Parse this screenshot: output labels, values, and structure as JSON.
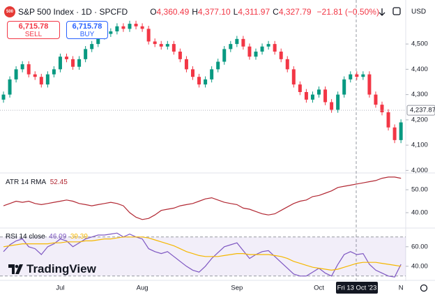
{
  "header": {
    "logo": "500",
    "symbol": "S&P 500 Index · 1D · SPCFD",
    "ohlc": [
      {
        "key": "O",
        "value": "4,360.49"
      },
      {
        "key": "H",
        "value": "4,377.10"
      },
      {
        "key": "L",
        "value": "4,311.97"
      },
      {
        "key": "C",
        "value": "4,327.79"
      }
    ],
    "change": "−21.81 (−0.50%)"
  },
  "trade": {
    "sell_price": "6,715.78",
    "sell": "SELL",
    "buy_price": "6,715.78",
    "buy": "BUY"
  },
  "currency": "USD",
  "brand": "TradingView",
  "crosshair_label": "Fri 13 Oct '23",
  "chart_data": [
    {
      "type": "candlestick",
      "categories": [
        null,
        null,
        null,
        null,
        null,
        null,
        null,
        null,
        null,
        "Jul",
        null,
        null,
        null,
        null,
        null,
        null,
        null,
        null,
        null,
        null,
        null,
        null,
        "Aug",
        null,
        null,
        null,
        null,
        null,
        null,
        null,
        null,
        null,
        null,
        null,
        null,
        null,
        null,
        "Sep",
        null,
        null,
        null,
        null,
        null,
        null,
        null,
        null,
        null,
        null,
        null,
        null,
        "Oct",
        null,
        null,
        null,
        null,
        null,
        null,
        null,
        null,
        null,
        null,
        null,
        null,
        "N"
      ],
      "open": [
        4280,
        4300,
        4360,
        4400,
        4420,
        4380,
        4370,
        4340,
        4380,
        4400,
        4450,
        4440,
        4410,
        4440,
        4480,
        4500,
        4530,
        4540,
        4550,
        4570,
        4560,
        4580,
        4570,
        4560,
        4510,
        4500,
        4490,
        4500,
        4470,
        4440,
        4400,
        4370,
        4340,
        4360,
        4400,
        4430,
        4480,
        4500,
        4520,
        4490,
        4450,
        4470,
        4490,
        4500,
        4470,
        4440,
        4400,
        4340,
        4310,
        4280,
        4300,
        4320,
        4270,
        4240,
        4300,
        4360,
        4380,
        4370,
        4380,
        4300,
        4260,
        4230,
        4170,
        4120
      ],
      "high": [
        4312,
        4372,
        4412,
        4432,
        4432,
        4392,
        4382,
        4392,
        4412,
        4462,
        4462,
        4452,
        4452,
        4492,
        4512,
        4542,
        4552,
        4562,
        4582,
        4582,
        4592,
        4592,
        4582,
        4572,
        4522,
        4512,
        4512,
        4512,
        4482,
        4452,
        4412,
        4382,
        4372,
        4412,
        4442,
        4492,
        4512,
        4532,
        4532,
        4502,
        4482,
        4502,
        4512,
        4512,
        4482,
        4452,
        4412,
        4352,
        4322,
        4312,
        4332,
        4332,
        4282,
        4312,
        4372,
        4392,
        4392,
        4392,
        4392,
        4312,
        4272,
        4242,
        4182,
        4202
      ],
      "low": [
        4268,
        4288,
        4348,
        4388,
        4368,
        4358,
        4328,
        4328,
        4368,
        4388,
        4428,
        4398,
        4398,
        4428,
        4468,
        4488,
        4518,
        4528,
        4538,
        4548,
        4548,
        4558,
        4548,
        4498,
        4488,
        4478,
        4478,
        4458,
        4428,
        4388,
        4358,
        4328,
        4328,
        4348,
        4388,
        4418,
        4468,
        4488,
        4478,
        4438,
        4438,
        4458,
        4478,
        4458,
        4428,
        4388,
        4328,
        4298,
        4268,
        4268,
        4288,
        4258,
        4228,
        4228,
        4288,
        4348,
        4358,
        4358,
        4288,
        4248,
        4218,
        4158,
        4108,
        4108
      ],
      "close": [
        4300,
        4360,
        4400,
        4420,
        4380,
        4370,
        4340,
        4380,
        4400,
        4450,
        4440,
        4410,
        4440,
        4480,
        4500,
        4530,
        4540,
        4550,
        4570,
        4560,
        4580,
        4570,
        4560,
        4510,
        4500,
        4490,
        4500,
        4470,
        4440,
        4400,
        4370,
        4340,
        4360,
        4400,
        4430,
        4480,
        4500,
        4520,
        4490,
        4450,
        4470,
        4490,
        4500,
        4470,
        4440,
        4400,
        4340,
        4310,
        4280,
        4300,
        4320,
        4270,
        4240,
        4300,
        4360,
        4380,
        4370,
        4380,
        4300,
        4260,
        4230,
        4170,
        4120,
        4190
      ],
      "up_color": "#089981",
      "down_color": "#f23645",
      "ylim": [
        3990,
        4652
      ],
      "yticks": [
        {
          "value": 4000,
          "label": "4,000"
        },
        {
          "value": 4100,
          "label": "4,100"
        },
        {
          "value": 4200,
          "label": "4,200"
        },
        {
          "value": 4300,
          "label": "4,300"
        },
        {
          "value": 4400,
          "label": "4,400"
        },
        {
          "value": 4500,
          "label": "4,500"
        }
      ],
      "last_price": {
        "value": 4237.87,
        "label": "4,237.87"
      }
    },
    {
      "type": "line",
      "title": "ATR 14 RMA",
      "last_value": 52.45,
      "series": [
        {
          "color": "#b22833",
          "values": [
            43,
            44,
            45,
            44.5,
            45,
            44,
            43.5,
            44,
            44.5,
            45,
            45.5,
            45,
            44,
            43.5,
            43,
            43.5,
            44,
            44.5,
            44,
            43,
            40,
            38,
            37,
            37.5,
            39,
            41,
            41.5,
            42,
            43,
            43.5,
            44,
            45,
            46,
            46.5,
            45.5,
            44.5,
            44,
            43.5,
            42,
            41.5,
            40.5,
            39.5,
            39,
            39.5,
            41,
            42.5,
            44,
            45,
            45.5,
            47,
            47.5,
            48.5,
            49.5,
            51,
            51.5,
            52,
            52.5,
            53,
            53.5,
            54,
            55,
            55.5,
            55.5,
            55
          ]
        }
      ],
      "ylim": [
        33.6,
        56.7
      ],
      "yticks": [
        {
          "value": 40,
          "label": "40.00"
        },
        {
          "value": 50,
          "label": "50.00"
        }
      ]
    },
    {
      "type": "line",
      "title": "RSI 14 close",
      "band": [
        30,
        70
      ],
      "series": [
        {
          "color": "#7e57c2",
          "last_value": 46.09,
          "values": [
            55,
            62,
            66,
            68,
            60,
            58,
            52,
            60,
            63,
            68,
            66,
            60,
            64,
            68,
            70,
            72,
            72,
            73,
            74,
            70,
            73,
            70,
            68,
            58,
            55,
            53,
            55,
            50,
            45,
            40,
            36,
            34,
            40,
            48,
            54,
            60,
            62,
            64,
            56,
            48,
            52,
            55,
            56,
            50,
            44,
            38,
            32,
            30,
            30,
            34,
            38,
            33,
            30,
            42,
            52,
            55,
            52,
            53,
            42,
            36,
            33,
            30,
            29,
            42
          ]
        },
        {
          "color": "#f5b700",
          "last_value": 39.39,
          "values": [
            60,
            61,
            62,
            63,
            63,
            63,
            63,
            63,
            64,
            64,
            65,
            65,
            65,
            66,
            66,
            67,
            68,
            68,
            69,
            70,
            70,
            70,
            70,
            69,
            67,
            65,
            63,
            61,
            58,
            55,
            53,
            51,
            50,
            50,
            50,
            51,
            52,
            53,
            53,
            52,
            52,
            52,
            52,
            51,
            50,
            48,
            45,
            43,
            41,
            39,
            38,
            37,
            36,
            37,
            39,
            41,
            43,
            44,
            44,
            44,
            43,
            42,
            41,
            40
          ]
        }
      ],
      "ylim": [
        27,
        77
      ],
      "yticks": [
        {
          "value": 40,
          "label": "40.00"
        },
        {
          "value": 60,
          "label": "60.00"
        }
      ]
    }
  ]
}
